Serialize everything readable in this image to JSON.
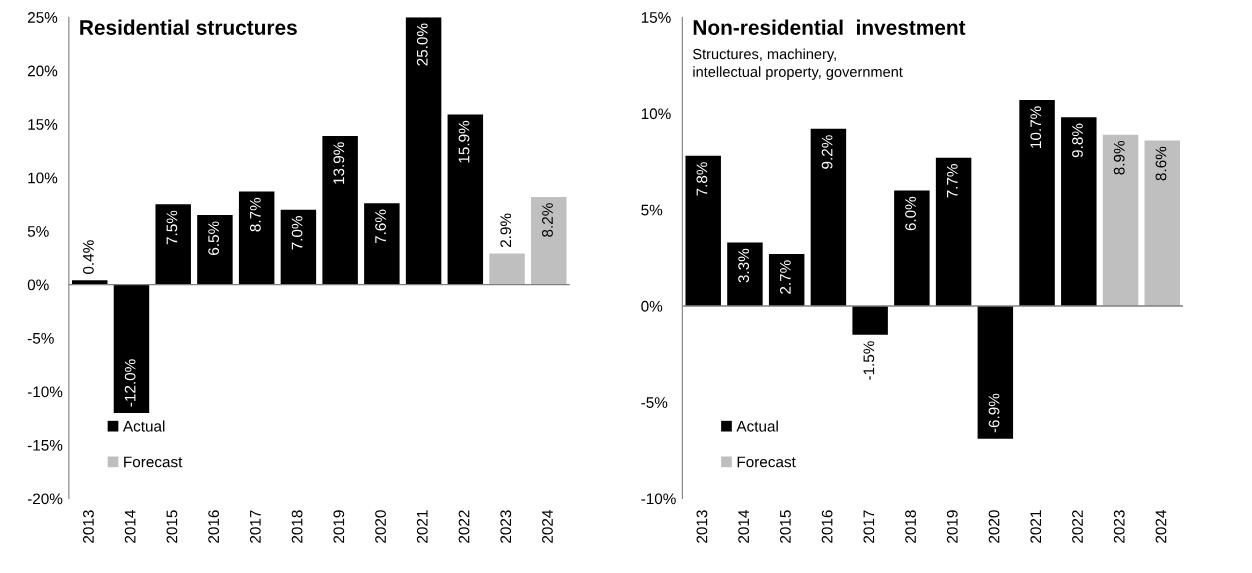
{
  "chart_data": [
    {
      "type": "bar",
      "title": "Residential structures",
      "categories": [
        "2013",
        "2014",
        "2015",
        "2016",
        "2017",
        "2018",
        "2019",
        "2020",
        "2021",
        "2022",
        "2023",
        "2024"
      ],
      "series": [
        {
          "name": "Actual",
          "color": "#000000",
          "values": [
            0.4,
            -12.0,
            7.5,
            6.5,
            8.7,
            7.0,
            13.9,
            7.6,
            25.0,
            15.9,
            null,
            null
          ],
          "value_labels": [
            "0.4%",
            "-12.0%",
            "7.5%",
            "6.5%",
            "8.7%",
            "7.0%",
            "13.9%",
            "7.6%",
            "25.0%",
            "15.9%",
            null,
            null
          ]
        },
        {
          "name": "Forecast",
          "color": "#bfbfbf",
          "values": [
            null,
            null,
            null,
            null,
            null,
            null,
            null,
            null,
            null,
            null,
            2.9,
            8.2
          ],
          "value_labels": [
            null,
            null,
            null,
            null,
            null,
            null,
            null,
            null,
            null,
            null,
            "2.9%",
            "8.2%"
          ]
        }
      ],
      "stacked": true,
      "ylim": [
        -20,
        25
      ],
      "yticks": [
        {
          "value": -20,
          "label": "-20%"
        },
        {
          "value": -15,
          "label": "-15%"
        },
        {
          "value": -10,
          "label": "-10%"
        },
        {
          "value": -5,
          "label": "-5%"
        },
        {
          "value": 0,
          "label": "0%"
        },
        {
          "value": 5,
          "label": "5%"
        },
        {
          "value": 10,
          "label": "10%"
        },
        {
          "value": 15,
          "label": "15%"
        },
        {
          "value": 20,
          "label": "20%"
        },
        {
          "value": 25,
          "label": "25%"
        }
      ],
      "ref_lines": [
        {
          "axis": "y",
          "value": 0,
          "color": "#808080"
        }
      ],
      "grid": false,
      "legend": "bottom left"
    },
    {
      "type": "bar",
      "title": "Non-residential  investment",
      "subtitle": "Structures, machinery,\nintellectual property, government",
      "categories": [
        "2013",
        "2014",
        "2015",
        "2016",
        "2017",
        "2018",
        "2019",
        "2020",
        "2021",
        "2022",
        "2023",
        "2024"
      ],
      "series": [
        {
          "name": "Actual",
          "color": "#000000",
          "values": [
            7.8,
            3.3,
            2.7,
            9.2,
            -1.5,
            6.0,
            7.7,
            -6.9,
            10.7,
            9.8,
            null,
            null
          ],
          "value_labels": [
            "7.8%",
            "3.3%",
            "2.7%",
            "9.2%",
            "-1.5%",
            "6.0%",
            "7.7%",
            "-6.9%",
            "10.7%",
            "9.8%",
            null,
            null
          ]
        },
        {
          "name": "Forecast",
          "color": "#bfbfbf",
          "values": [
            null,
            null,
            null,
            null,
            null,
            null,
            null,
            null,
            null,
            null,
            8.9,
            8.6
          ],
          "value_labels": [
            null,
            null,
            null,
            null,
            null,
            null,
            null,
            null,
            null,
            null,
            "8.9%",
            "8.6%"
          ]
        }
      ],
      "stacked": true,
      "ylim": [
        -10,
        15
      ],
      "yticks": [
        {
          "value": -10,
          "label": "-10%"
        },
        {
          "value": -5,
          "label": "-5%"
        },
        {
          "value": 0,
          "label": "0%"
        },
        {
          "value": 5,
          "label": "5%"
        },
        {
          "value": 10,
          "label": "10%"
        },
        {
          "value": 15,
          "label": "15%"
        }
      ],
      "ref_lines": [
        {
          "axis": "y",
          "value": 0,
          "color": "#808080"
        }
      ],
      "grid": false,
      "legend": "bottom left"
    }
  ]
}
